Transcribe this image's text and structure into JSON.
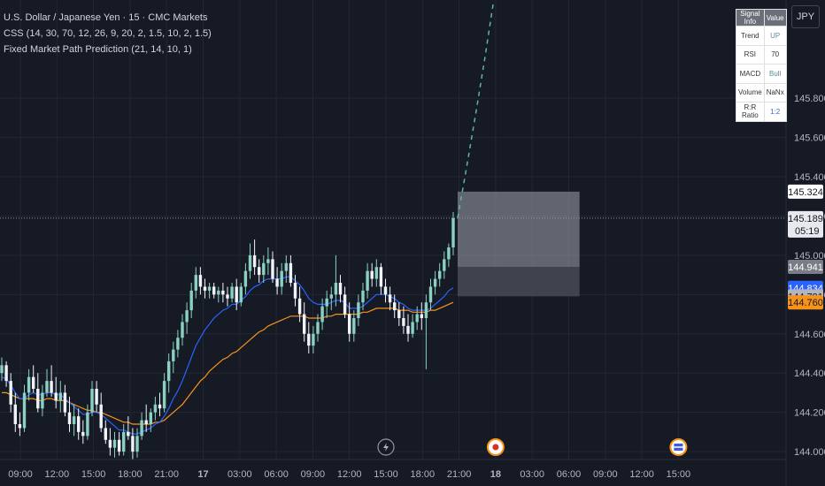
{
  "legend": {
    "symbol": "U.S. Dollar / Japanese Yen · 15 · CMC Markets",
    "indicator1": "CSS (14, 30, 70, 12, 26, 9, 20, 2, 1.5, 10, 2, 1.5)",
    "indicator2": "Fixed Market Path Prediction (21, 14, 10, 1)"
  },
  "currency_button": "JPY",
  "signal_table": {
    "header": [
      "Signal Info",
      "Value"
    ],
    "rows": [
      {
        "label": "Trend",
        "value": "UP"
      },
      {
        "label": "RSI",
        "value": "70"
      },
      {
        "label": "MACD",
        "value": "Bull"
      },
      {
        "label": "Volume",
        "value": "NaNx"
      },
      {
        "label": "R:R Ratio",
        "value": "1:2"
      }
    ]
  },
  "colors": {
    "background": "#161a25",
    "grid": "#232733",
    "candle_up": "#8ad1c2",
    "candle_down": "#f0f3fa",
    "ema_fast": "#2962ff",
    "ema_slow": "#f7931a",
    "prediction": "#5fb3a8",
    "zone_upper": "#9598a1",
    "zone_lower": "#4a4d57"
  },
  "chart_data": {
    "type": "candlestick",
    "title": "U.S. Dollar / Japanese Yen · 15 · CMC Markets",
    "ylim": [
      143.96,
      146.3
    ],
    "y_ticks": [
      144.0,
      144.2,
      144.4,
      144.6,
      144.8,
      145.0,
      145.2,
      145.4,
      145.6,
      145.8
    ],
    "y_tick_labels": [
      "144.000",
      "144.200",
      "144.400",
      "144.600",
      "144.800",
      "145.000",
      "145.200",
      "145.400",
      "145.600",
      "145.800"
    ],
    "x_ticks": [
      "09:00",
      "12:00",
      "15:00",
      "18:00",
      "21:00",
      "17",
      "03:00",
      "06:00",
      "09:00",
      "12:00",
      "15:00",
      "18:00",
      "21:00",
      "18",
      "03:00",
      "06:00",
      "09:00",
      "12:00",
      "15:00"
    ],
    "x_tick_bold": [
      false,
      false,
      false,
      false,
      false,
      true,
      false,
      false,
      false,
      false,
      false,
      false,
      false,
      true,
      false,
      false,
      false,
      false,
      false
    ],
    "price_labels": [
      {
        "value": 145.324,
        "text": "145.324",
        "bg": "#ffffff",
        "fg": "#131722"
      },
      {
        "value": 145.189,
        "text": "145.189",
        "sub": "05:19",
        "bg": "#e8e9ed",
        "fg": "#131722"
      },
      {
        "value": 144.941,
        "text": "144.941",
        "bg": "#7a7d86",
        "fg": "#ffffff"
      },
      {
        "value": 144.834,
        "text": "144.834",
        "bg": "#2962ff",
        "fg": "#ffffff"
      },
      {
        "value": 144.791,
        "text": "144.791",
        "bg": "#b2b5be",
        "fg": "#131722"
      },
      {
        "value": 144.76,
        "text": "144.760",
        "bg": "#f7931a",
        "fg": "#131722"
      }
    ],
    "current_price": 145.189,
    "candles": [
      [
        144.4,
        144.48,
        144.36,
        144.44
      ],
      [
        144.44,
        144.46,
        144.33,
        144.36
      ],
      [
        144.36,
        144.4,
        144.2,
        144.24
      ],
      [
        144.24,
        144.3,
        144.1,
        144.14
      ],
      [
        144.14,
        144.2,
        144.08,
        144.12
      ],
      [
        144.12,
        144.34,
        144.1,
        144.3
      ],
      [
        144.3,
        144.42,
        144.26,
        144.38
      ],
      [
        144.38,
        144.44,
        144.3,
        144.32
      ],
      [
        144.32,
        144.4,
        144.2,
        144.22
      ],
      [
        144.22,
        144.34,
        144.18,
        144.3
      ],
      [
        144.3,
        144.42,
        144.28,
        144.36
      ],
      [
        144.36,
        144.44,
        144.28,
        144.3
      ],
      [
        144.3,
        144.38,
        144.22,
        144.26
      ],
      [
        144.26,
        144.36,
        144.2,
        144.3
      ],
      [
        144.3,
        144.34,
        144.18,
        144.2
      ],
      [
        144.2,
        144.28,
        144.1,
        144.14
      ],
      [
        144.14,
        144.24,
        144.08,
        144.18
      ],
      [
        144.18,
        144.22,
        144.06,
        144.1
      ],
      [
        144.1,
        144.16,
        144.04,
        144.08
      ],
      [
        144.08,
        144.24,
        144.06,
        144.2
      ],
      [
        144.2,
        144.36,
        144.18,
        144.32
      ],
      [
        144.32,
        144.36,
        144.2,
        144.24
      ],
      [
        144.24,
        144.3,
        144.1,
        144.12
      ],
      [
        144.12,
        144.16,
        144.04,
        144.06
      ],
      [
        144.06,
        144.12,
        143.98,
        144.02
      ],
      [
        144.02,
        144.1,
        143.97,
        144.06
      ],
      [
        144.06,
        144.1,
        143.98,
        144.0
      ],
      [
        144.0,
        144.14,
        143.98,
        144.1
      ],
      [
        144.1,
        144.18,
        144.06,
        144.08
      ],
      [
        144.08,
        144.12,
        143.96,
        144.0
      ],
      [
        144.0,
        144.12,
        143.97,
        144.08
      ],
      [
        144.08,
        144.2,
        144.06,
        144.16
      ],
      [
        144.16,
        144.24,
        144.1,
        144.14
      ],
      [
        144.14,
        144.22,
        144.1,
        144.2
      ],
      [
        144.2,
        144.28,
        144.16,
        144.24
      ],
      [
        144.24,
        144.3,
        144.18,
        144.22
      ],
      [
        144.22,
        144.4,
        144.2,
        144.36
      ],
      [
        144.36,
        144.5,
        144.3,
        144.46
      ],
      [
        144.46,
        144.56,
        144.4,
        144.52
      ],
      [
        144.52,
        144.62,
        144.48,
        144.58
      ],
      [
        144.58,
        144.7,
        144.54,
        144.66
      ],
      [
        144.66,
        144.76,
        144.6,
        144.72
      ],
      [
        144.72,
        144.86,
        144.68,
        144.82
      ],
      [
        144.82,
        144.94,
        144.78,
        144.9
      ],
      [
        144.9,
        144.94,
        144.8,
        144.84
      ],
      [
        144.84,
        144.88,
        144.78,
        144.82
      ],
      [
        144.82,
        144.86,
        144.78,
        144.84
      ],
      [
        144.84,
        144.86,
        144.78,
        144.8
      ],
      [
        144.8,
        144.84,
        144.76,
        144.82
      ],
      [
        144.82,
        144.86,
        144.76,
        144.8
      ],
      [
        144.8,
        144.84,
        144.74,
        144.78
      ],
      [
        144.78,
        144.86,
        144.76,
        144.84
      ],
      [
        144.84,
        144.88,
        144.72,
        144.76
      ],
      [
        144.76,
        144.86,
        144.74,
        144.84
      ],
      [
        144.84,
        144.96,
        144.8,
        144.92
      ],
      [
        144.92,
        145.06,
        144.88,
        145.0
      ],
      [
        145.0,
        145.08,
        144.9,
        144.94
      ],
      [
        144.94,
        144.98,
        144.86,
        144.9
      ],
      [
        144.9,
        145.0,
        144.86,
        144.96
      ],
      [
        144.96,
        145.04,
        144.9,
        144.98
      ],
      [
        144.98,
        145.02,
        144.86,
        144.88
      ],
      [
        144.88,
        144.94,
        144.8,
        144.84
      ],
      [
        144.84,
        144.96,
        144.8,
        144.92
      ],
      [
        144.92,
        145.0,
        144.86,
        144.96
      ],
      [
        144.96,
        145.0,
        144.84,
        144.86
      ],
      [
        144.86,
        144.9,
        144.74,
        144.78
      ],
      [
        144.78,
        144.84,
        144.66,
        144.7
      ],
      [
        144.7,
        144.76,
        144.56,
        144.6
      ],
      [
        144.6,
        144.66,
        144.5,
        144.54
      ],
      [
        144.54,
        144.64,
        144.5,
        144.6
      ],
      [
        144.6,
        144.7,
        144.56,
        144.66
      ],
      [
        144.66,
        144.78,
        144.62,
        144.74
      ],
      [
        144.74,
        144.82,
        144.68,
        144.78
      ],
      [
        144.78,
        144.84,
        144.72,
        144.8
      ],
      [
        144.8,
        145.0,
        144.74,
        144.86
      ],
      [
        144.86,
        144.9,
        144.76,
        144.8
      ],
      [
        144.8,
        144.84,
        144.68,
        144.7
      ],
      [
        144.7,
        144.76,
        144.56,
        144.6
      ],
      [
        144.6,
        144.72,
        144.56,
        144.68
      ],
      [
        144.68,
        144.8,
        144.64,
        144.76
      ],
      [
        144.76,
        144.86,
        144.72,
        144.82
      ],
      [
        144.82,
        144.96,
        144.78,
        144.92
      ],
      [
        144.92,
        144.96,
        144.84,
        144.88
      ],
      [
        144.88,
        144.98,
        144.84,
        144.94
      ],
      [
        144.94,
        144.96,
        144.8,
        144.84
      ],
      [
        144.84,
        144.88,
        144.76,
        144.8
      ],
      [
        144.8,
        144.84,
        144.72,
        144.76
      ],
      [
        144.76,
        144.8,
        144.68,
        144.72
      ],
      [
        144.72,
        144.76,
        144.64,
        144.68
      ],
      [
        144.68,
        144.74,
        144.6,
        144.64
      ],
      [
        144.64,
        144.7,
        144.56,
        144.6
      ],
      [
        144.6,
        144.7,
        144.58,
        144.66
      ],
      [
        144.66,
        144.74,
        144.62,
        144.7
      ],
      [
        144.7,
        144.76,
        144.62,
        144.68
      ],
      [
        144.68,
        144.8,
        144.42,
        144.76
      ],
      [
        144.76,
        144.88,
        144.72,
        144.84
      ],
      [
        144.84,
        144.92,
        144.8,
        144.88
      ],
      [
        144.88,
        144.96,
        144.84,
        144.92
      ],
      [
        144.92,
        145.02,
        144.88,
        144.98
      ],
      [
        144.98,
        145.06,
        144.94,
        145.04
      ],
      [
        145.04,
        145.22,
        145.0,
        145.189
      ]
    ],
    "ema_fast": [
      144.38,
      144.37,
      144.34,
      144.3,
      144.27,
      144.27,
      144.29,
      144.3,
      144.29,
      144.29,
      144.3,
      144.3,
      144.29,
      144.29,
      144.27,
      144.25,
      144.23,
      144.21,
      144.19,
      144.19,
      144.2,
      144.2,
      144.19,
      144.17,
      144.15,
      144.13,
      144.11,
      144.11,
      144.1,
      144.09,
      144.09,
      144.1,
      144.11,
      144.12,
      144.14,
      144.15,
      144.18,
      144.22,
      144.27,
      144.31,
      144.36,
      144.42,
      144.48,
      144.54,
      144.58,
      144.62,
      144.65,
      144.68,
      144.7,
      144.72,
      144.73,
      144.75,
      144.75,
      144.77,
      144.79,
      144.82,
      144.84,
      144.85,
      144.87,
      144.88,
      144.88,
      144.88,
      144.88,
      144.89,
      144.89,
      144.87,
      144.85,
      144.82,
      144.78,
      144.76,
      144.75,
      144.75,
      144.75,
      144.76,
      144.77,
      144.77,
      144.76,
      144.73,
      144.73,
      144.73,
      144.74,
      144.76,
      144.78,
      144.8,
      144.8,
      144.8,
      144.79,
      144.78,
      144.76,
      144.75,
      144.73,
      144.72,
      144.72,
      144.72,
      144.72,
      144.73,
      144.75,
      144.77,
      144.79,
      144.82,
      144.834
    ],
    "ema_slow": [
      144.3,
      144.3,
      144.29,
      144.28,
      144.27,
      144.27,
      144.27,
      144.27,
      144.26,
      144.26,
      144.27,
      144.27,
      144.26,
      144.26,
      144.26,
      144.25,
      144.24,
      144.23,
      144.22,
      144.21,
      144.21,
      144.2,
      144.2,
      144.19,
      144.18,
      144.17,
      144.16,
      144.15,
      144.15,
      144.14,
      144.14,
      144.14,
      144.14,
      144.14,
      144.15,
      144.15,
      144.16,
      144.18,
      144.2,
      144.22,
      144.24,
      144.27,
      144.3,
      144.33,
      144.36,
      144.38,
      144.41,
      144.43,
      144.45,
      144.47,
      144.48,
      144.5,
      144.51,
      144.53,
      144.55,
      144.57,
      144.59,
      144.61,
      144.62,
      144.64,
      144.65,
      144.66,
      144.67,
      144.68,
      144.69,
      144.69,
      144.69,
      144.69,
      144.68,
      144.68,
      144.68,
      144.68,
      144.69,
      144.69,
      144.7,
      144.7,
      144.7,
      144.7,
      144.7,
      144.7,
      144.71,
      144.71,
      144.72,
      144.73,
      144.73,
      144.73,
      144.73,
      144.73,
      144.72,
      144.72,
      144.72,
      144.71,
      144.71,
      144.71,
      144.71,
      144.72,
      144.72,
      144.73,
      144.74,
      144.75,
      144.76
    ],
    "prediction_path": [
      [
        100,
        145.19
      ],
      [
        102,
        145.45
      ],
      [
        104,
        145.72
      ],
      [
        106,
        146.0
      ],
      [
        108,
        146.3
      ]
    ],
    "zone": {
      "x_start": 100,
      "x_end": 127,
      "upper_top": 145.324,
      "upper_bottom": 144.941,
      "lower_bottom": 144.791
    },
    "event_icons": [
      {
        "x_tick_index": 10,
        "kind": "lightning"
      },
      {
        "x_tick_index": 13,
        "kind": "record"
      },
      {
        "x_tick_index": 18,
        "kind": "flag"
      }
    ]
  }
}
